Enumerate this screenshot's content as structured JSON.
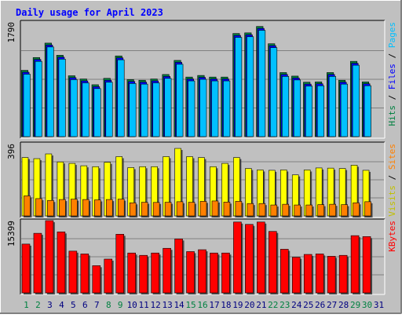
{
  "chart_data": [
    {
      "type": "bar",
      "title": "Daily usage for April 2023",
      "categories": [
        "1",
        "2",
        "3",
        "4",
        "5",
        "6",
        "7",
        "8",
        "9",
        "10",
        "11",
        "12",
        "13",
        "14",
        "15",
        "16",
        "17",
        "18",
        "19",
        "20",
        "21",
        "22",
        "23",
        "24",
        "25",
        "26",
        "27",
        "28",
        "29",
        "30",
        "31"
      ],
      "weekend_categories": [
        "1",
        "2",
        "8",
        "9",
        "15",
        "16",
        "22",
        "23",
        "29",
        "30"
      ],
      "ymax_label": "1790",
      "ylim": [
        0,
        1790
      ],
      "ylabel_parts": [
        "Pages",
        "Files",
        "Hits"
      ],
      "series": [
        {
          "name": "Hits",
          "color": "#008040",
          "values": [
            1035,
            1235,
            1460,
            1270,
            950,
            900,
            810,
            910,
            1260,
            890,
            880,
            900,
            970,
            1190,
            930,
            955,
            930,
            930,
            1610,
            1620,
            1720,
            1450,
            1000,
            945,
            850,
            855,
            1000,
            880,
            1175,
            855,
            0
          ]
        },
        {
          "name": "Files",
          "color": "#0000ff",
          "values": [
            1005,
            1205,
            1430,
            1240,
            920,
            870,
            780,
            880,
            1230,
            860,
            850,
            870,
            940,
            1160,
            900,
            925,
            900,
            900,
            1580,
            1590,
            1690,
            1420,
            970,
            915,
            820,
            825,
            970,
            850,
            1145,
            825,
            0
          ]
        },
        {
          "name": "Pages",
          "color": "#00c0ff",
          "values": [
            975,
            1175,
            1400,
            1210,
            890,
            840,
            750,
            850,
            1200,
            830,
            820,
            840,
            910,
            1130,
            870,
            895,
            870,
            870,
            1550,
            1560,
            1660,
            1390,
            940,
            885,
            790,
            795,
            940,
            820,
            1115,
            795,
            0
          ]
        }
      ]
    },
    {
      "type": "bar",
      "ymax_label": "396",
      "ylim": [
        0,
        396
      ],
      "ylabel_parts": [
        "Sites",
        "Visits"
      ],
      "series": [
        {
          "name": "Visits",
          "color": "#ffff00",
          "values": [
            320,
            314,
            340,
            296,
            288,
            275,
            270,
            294,
            325,
            265,
            270,
            270,
            325,
            370,
            325,
            320,
            270,
            288,
            320,
            260,
            252,
            250,
            252,
            225,
            252,
            263,
            262,
            260,
            278,
            250,
            0
          ]
        },
        {
          "name": "Sites",
          "color": "#ff8000",
          "values": [
            110,
            95,
            85,
            90,
            92,
            90,
            88,
            90,
            92,
            72,
            75,
            74,
            75,
            78,
            75,
            80,
            82,
            76,
            80,
            68,
            68,
            60,
            64,
            60,
            60,
            62,
            64,
            62,
            72,
            78,
            0
          ]
        }
      ]
    },
    {
      "type": "bar",
      "ymax_label": "15399",
      "ylim": [
        0,
        15399
      ],
      "ylabel_parts": [
        "KBytes"
      ],
      "series": [
        {
          "name": "KBytes",
          "color": "#ff0000",
          "values": [
            10400,
            12700,
            15400,
            13000,
            8900,
            8300,
            5800,
            7200,
            12500,
            8500,
            8000,
            8500,
            9500,
            11500,
            8800,
            9200,
            8500,
            8500,
            15100,
            14600,
            15100,
            13100,
            9300,
            7600,
            8200,
            8300,
            7800,
            8000,
            12200,
            12000,
            0
          ]
        }
      ]
    }
  ],
  "colors": {
    "panel_bg": "#c0c0c0",
    "title": "#0000ff",
    "weekday_label": "#000080",
    "weekend_label": "#008040",
    "divider_dark": "#000000",
    "grid": "#808080"
  }
}
